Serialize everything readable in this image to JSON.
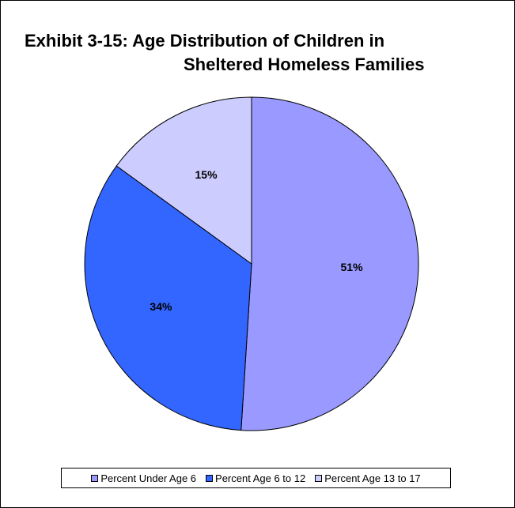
{
  "chart_data": {
    "type": "pie",
    "title_line1": "Exhibit 3-15:   Age Distribution of Children in",
    "title_line2": "Sheltered Homeless Families",
    "categories": [
      "Percent Under Age 6",
      "Percent Age 6 to 12",
      "Percent Age 13 to 17"
    ],
    "values": [
      51,
      34,
      15
    ],
    "labels": [
      "51%",
      "34%",
      "15%"
    ],
    "colors": [
      "#9999ff",
      "#3366ff",
      "#ccccff"
    ],
    "start_angle_deg": 0,
    "direction": "clockwise",
    "legend_position": "bottom"
  }
}
